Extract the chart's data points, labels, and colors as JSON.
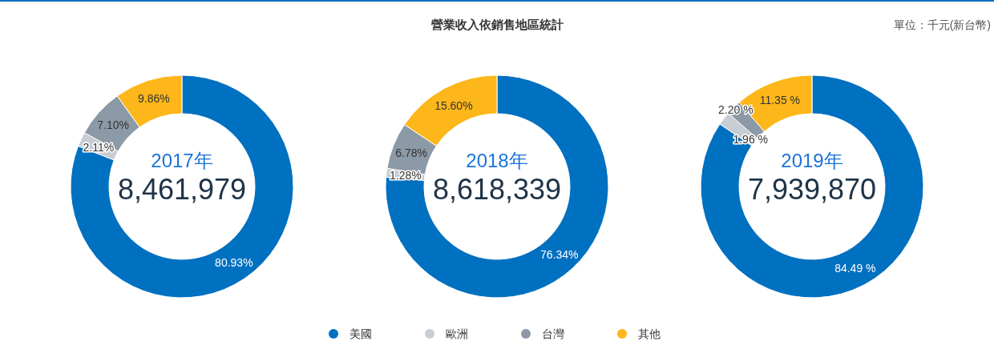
{
  "chart_data": [
    {
      "type": "other",
      "title": "營業收入依銷售地區統計",
      "annotations": [
        "單位：千元(新台幣)"
      ]
    },
    {
      "type": "donut",
      "title": "2017年",
      "annotations": [
        "8,461,979"
      ],
      "categories": [
        null,
        null,
        null,
        null
      ],
      "values": [
        80.93,
        2.11,
        7.1,
        9.86
      ],
      "value_labels": [
        "80.93%",
        "2.11%",
        "7.10%",
        "9.86%"
      ],
      "colors": [
        "#0070c0",
        "#c8cdd3",
        "#8c99a6",
        "#fdb71a"
      ]
    },
    {
      "type": "donut",
      "title": "2018年",
      "annotations": [
        "8,618,339"
      ],
      "categories": [
        "美國",
        "歐洲",
        "台灣",
        "其他"
      ],
      "values": [
        76.34,
        1.28,
        6.78,
        15.6
      ],
      "value_labels": [
        "76.34%",
        "1.28%",
        "6.78%",
        "15.60%"
      ],
      "colors": [
        "#0070c0",
        "#c8cdd3",
        "#8c99a6",
        "#fdb71a"
      ],
      "legend": "bottom"
    },
    {
      "type": "donut",
      "title": "2019年",
      "annotations": [
        "7,939,870"
      ],
      "categories": [
        null,
        null,
        null,
        null
      ],
      "values": [
        84.49,
        1.96,
        2.2,
        11.35
      ],
      "value_labels": [
        "84.49 %",
        "1.96 %",
        "2.20 %",
        "11.35 %"
      ],
      "colors": [
        "#0070c0",
        "#c8cdd3",
        "#8c99a6",
        "#fdb71a"
      ]
    }
  ]
}
